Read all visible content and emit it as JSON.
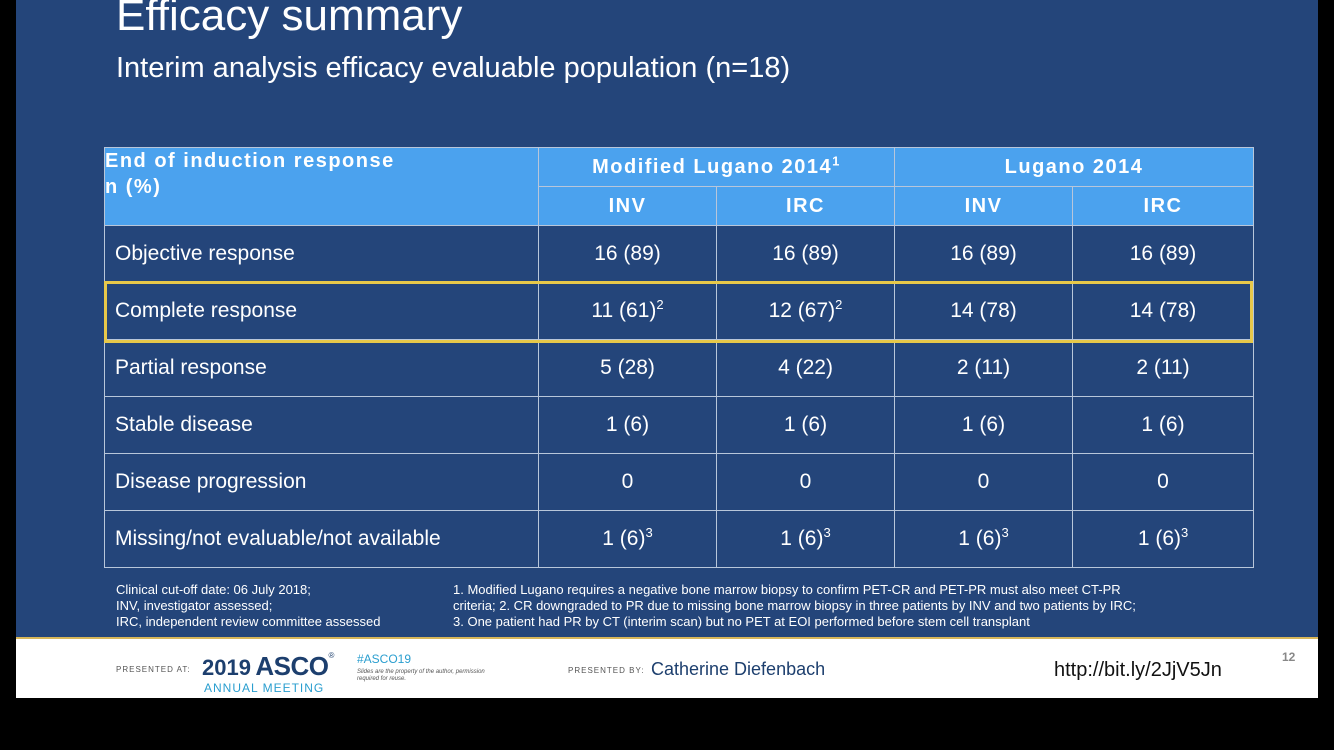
{
  "header": {
    "title": "Efficacy summary",
    "subtitle": "Interim analysis efficacy evaluable population (n=18)"
  },
  "table": {
    "corner_line1": "End of induction response",
    "corner_line2": "n (%)",
    "group1": "Modified Lugano 2014",
    "group1_sup": "1",
    "group2": "Lugano 2014",
    "sub": [
      "INV",
      "IRC",
      "INV",
      "IRC"
    ],
    "rows": [
      {
        "label": "Objective response",
        "cells": [
          {
            "v": "16 (89)",
            "s": ""
          },
          {
            "v": "16 (89)",
            "s": ""
          },
          {
            "v": "16 (89)",
            "s": ""
          },
          {
            "v": "16 (89)",
            "s": ""
          }
        ]
      },
      {
        "label": "Complete response",
        "cells": [
          {
            "v": "11 (61)",
            "s": "2"
          },
          {
            "v": "12 (67)",
            "s": "2"
          },
          {
            "v": "14 (78)",
            "s": ""
          },
          {
            "v": "14 (78)",
            "s": ""
          }
        ]
      },
      {
        "label": "Partial response",
        "cells": [
          {
            "v": "5 (28)",
            "s": ""
          },
          {
            "v": "4 (22)",
            "s": ""
          },
          {
            "v": "2 (11)",
            "s": ""
          },
          {
            "v": "2 (11)",
            "s": ""
          }
        ]
      },
      {
        "label": "Stable disease",
        "cells": [
          {
            "v": "1 (6)",
            "s": ""
          },
          {
            "v": "1 (6)",
            "s": ""
          },
          {
            "v": "1 (6)",
            "s": ""
          },
          {
            "v": "1 (6)",
            "s": ""
          }
        ]
      },
      {
        "label": "Disease progression",
        "cells": [
          {
            "v": "0",
            "s": ""
          },
          {
            "v": "0",
            "s": ""
          },
          {
            "v": "0",
            "s": ""
          },
          {
            "v": "0",
            "s": ""
          }
        ]
      },
      {
        "label": "Missing/not evaluable/not available",
        "cells": [
          {
            "v": "1 (6)",
            "s": "3"
          },
          {
            "v": "1 (6)",
            "s": "3"
          },
          {
            "v": "1 (6)",
            "s": "3"
          },
          {
            "v": "1 (6)",
            "s": "3"
          }
        ]
      }
    ]
  },
  "notes": {
    "left": [
      "Clinical cut-off date: 06 July 2018;",
      "INV, investigator assessed;",
      "IRC, independent review committee assessed"
    ],
    "right": [
      "1. Modified Lugano requires a negative bone marrow biopsy to confirm PET-CR and PET-PR must also meet CT-PR",
      "criteria; 2. CR downgraded to PR due to missing bone marrow biopsy in three patients by INV and two patients by IRC;",
      "3. One patient had PR by CT (interim scan) but no PET at EOI performed before stem cell transplant"
    ]
  },
  "footer": {
    "presented_at": "PRESENTED AT:",
    "asco_year": "2019",
    "asco_name": "ASCO",
    "asco_meeting": "ANNUAL MEETING",
    "hashtag": "#ASCO19",
    "hashtag_note": "Slides are the property of the author, permission required for reuse.",
    "presented_by": "PRESENTED BY:",
    "presenter": "Catherine Diefenbach",
    "url": "http://bit.ly/2JjV5Jn"
  },
  "page_number": "12",
  "colors": {
    "slide_bg": "#24457a",
    "header_bg": "#4ba2ee",
    "highlight": "#e7c84a"
  }
}
